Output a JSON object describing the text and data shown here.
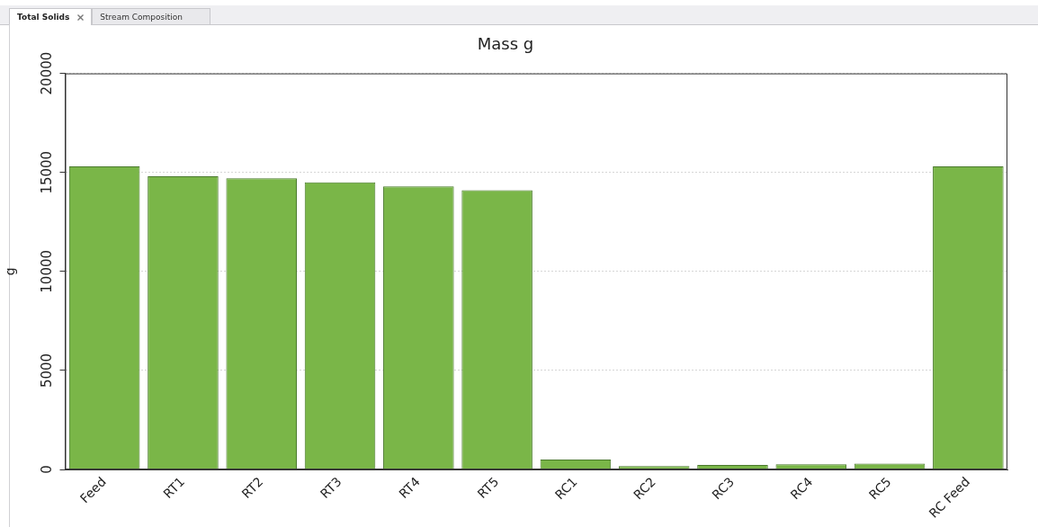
{
  "chart_data": {
    "type": "bar",
    "title": "Mass g",
    "ylabel": "g",
    "categories": [
      "Feed",
      "RT1",
      "RT2",
      "RT3",
      "RT4",
      "RT5",
      "RC1",
      "RC2",
      "RC3",
      "RC4",
      "RC5",
      "RC Feed"
    ],
    "values": [
      15300,
      14800,
      14700,
      14500,
      14300,
      14100,
      500,
      170,
      230,
      260,
      300,
      15300
    ],
    "color": "#7ab648",
    "ylim": [
      0,
      20000
    ],
    "yticks": [
      0,
      5000,
      10000,
      15000,
      20000
    ],
    "grid": "y",
    "legend": false,
    "annotations": [
      "Total Solids",
      "Stream Composition"
    ]
  }
}
